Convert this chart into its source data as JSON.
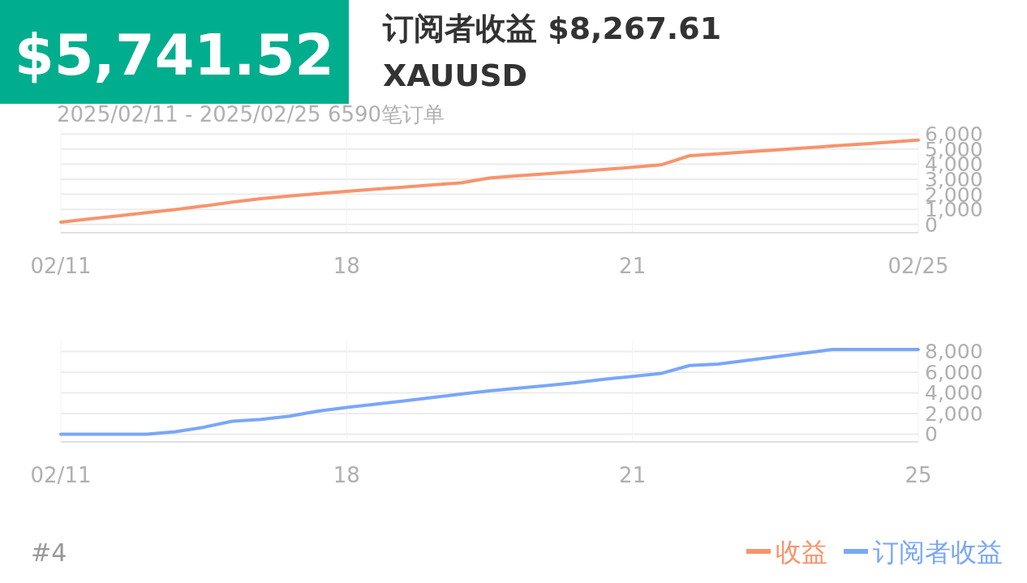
{
  "chart_data": [
    {
      "type": "line",
      "title": "$5,741.52",
      "subtitle": "订阅者收益 $8,267.61",
      "annotations": [
        "XAUUSD",
        "2025/02/11 - 2025/02/25  6590笔订单",
        "#4"
      ],
      "categories": [
        "02/11",
        null,
        null,
        null,
        null,
        null,
        null,
        null,
        null,
        null,
        "18",
        null,
        null,
        null,
        null,
        null,
        null,
        null,
        null,
        null,
        "21",
        null,
        null,
        null,
        null,
        null,
        null,
        null,
        null,
        null,
        "02/25"
      ],
      "ylim": [
        -550,
        6280
      ],
      "yticks": [
        0,
        {
          "value": 1000,
          "label": "1,000"
        },
        {
          "value": 2000,
          "label": "2,000"
        },
        {
          "value": 3000,
          "label": "3,000"
        },
        {
          "value": 4000,
          "label": "4,000"
        },
        {
          "value": 5000,
          "label": "5,000"
        },
        {
          "value": 6000,
          "label": "6,000"
        }
      ],
      "grid": true,
      "legend": "bottom right",
      "series": [
        {
          "name": "收益",
          "color": "#f7946c",
          "values": [
            150,
            360,
            570,
            780,
            990,
            1220,
            1480,
            1710,
            1880,
            2040,
            2200,
            2340,
            2480,
            2620,
            2760,
            3080,
            3230,
            3360,
            3500,
            3640,
            3790,
            3950,
            4560,
            4680,
            4810,
            4940,
            5070,
            5200,
            5330,
            5460,
            5590
          ]
        }
      ]
    },
    {
      "type": "line",
      "categories": [
        "02/11",
        null,
        null,
        null,
        null,
        null,
        null,
        null,
        null,
        null,
        "18",
        null,
        null,
        null,
        null,
        null,
        null,
        null,
        null,
        null,
        "21",
        null,
        null,
        null,
        null,
        null,
        null,
        null,
        null,
        null,
        "25"
      ],
      "ylim": [
        -750,
        9050
      ],
      "yticks": [
        0,
        {
          "value": 2000,
          "label": "2,000"
        },
        {
          "value": 4000,
          "label": "4,000"
        },
        {
          "value": 6000,
          "label": "6,000"
        },
        {
          "value": 8000,
          "label": "8,000"
        }
      ],
      "grid": true,
      "legend": "bottom right",
      "series": [
        {
          "name": "订阅者收益",
          "color": "#7aa7f7",
          "values": [
            0,
            0,
            0,
            0,
            230,
            670,
            1250,
            1420,
            1740,
            2230,
            2590,
            2900,
            3200,
            3540,
            3870,
            4200,
            4450,
            4690,
            4980,
            5310,
            5580,
            5870,
            6640,
            6780,
            7130,
            7490,
            7840,
            8180,
            8180,
            8180,
            8180
          ]
        }
      ]
    }
  ]
}
